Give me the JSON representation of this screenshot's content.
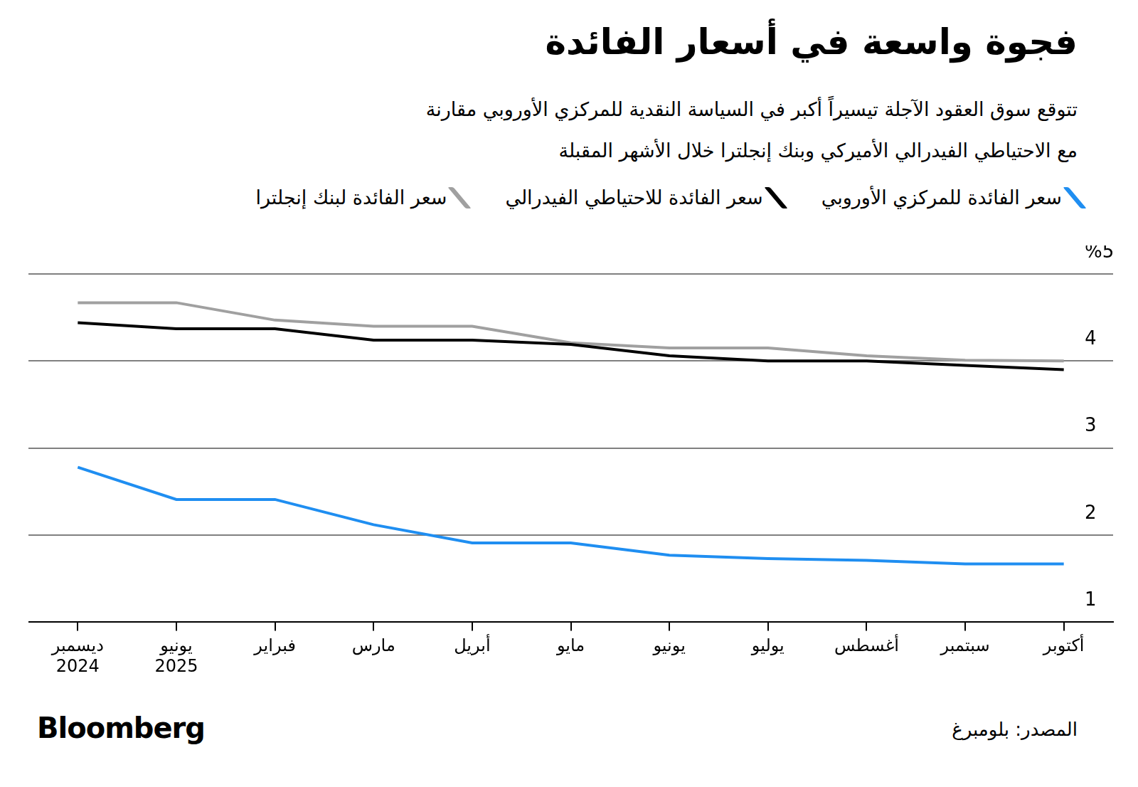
{
  "chart_data": {
    "type": "line",
    "title": "فجوة واسعة في أسعار الفائدة",
    "subtitle": [
      "تتوقع سوق العقود الآجلة تيسيراً أكبر في السياسة النقدية للمركزي الأوروبي مقارنة",
      "مع الاحتياطي الفيدرالي الأميركي وبنك إنجلترا خلال الأشهر المقبلة"
    ],
    "categories": [
      [
        "ديسمبر",
        "2024"
      ],
      [
        "يونيو",
        "2025"
      ],
      "فبراير",
      "مارس",
      "أبريل",
      "مايو",
      "يونيو",
      "يوليو",
      "أغسطس",
      "سبتمبر",
      "أكتوبر"
    ],
    "series": [
      {
        "name": "سعر الفائدة للمركزي الأوروبي",
        "color": "#1f8ef1",
        "values": [
          2.78,
          2.41,
          2.41,
          2.12,
          1.91,
          1.91,
          1.77,
          1.73,
          1.71,
          1.67,
          1.67
        ]
      },
      {
        "name": "سعر الفائدة للاحتياطي الفيدرالي",
        "color": "#000000",
        "values": [
          4.44,
          4.37,
          4.37,
          4.24,
          4.24,
          4.19,
          4.06,
          4.0,
          4.0,
          3.95,
          3.9
        ]
      },
      {
        "name": "سعر الفائدة لبنك إنجلترا",
        "color": "#a0a0a0",
        "values": [
          4.67,
          4.67,
          4.47,
          4.4,
          4.4,
          4.21,
          4.15,
          4.15,
          4.06,
          4.01,
          4.0
        ]
      }
    ],
    "ylim": [
      1,
      5
    ],
    "yticks": [
      1,
      2,
      3,
      4,
      {
        "value": 5,
        "label": "%5"
      }
    ],
    "grid": true,
    "source": "المصدر: بلومبرغ",
    "logo": "Bloomberg"
  }
}
